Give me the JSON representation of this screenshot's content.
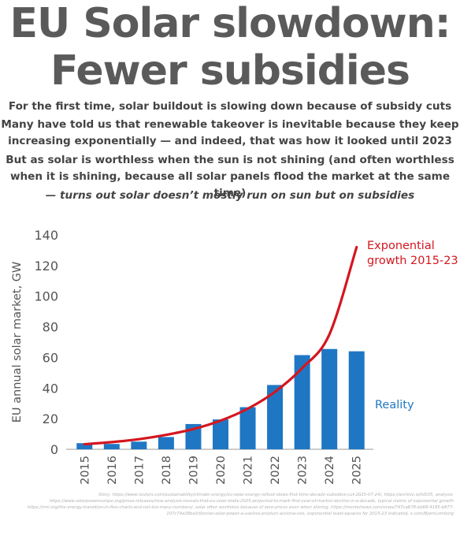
{
  "title_line1": "EU Solar slowdown:",
  "title_line2": "Fewer subsidies",
  "subtitle1": "For the first time, solar buildout is slowing down because of subsidy cuts",
  "subtitle2": "Many have told us that renewable takeover is inevitable because they keep increasing exponentially — and indeed, that was how it looked until 2023",
  "subtitle3": "But as solar is worthless when the sun is not shining (and often worthless when it is shining, because all solar panels flood the market at the same time)",
  "subtitle4": "— turns out solar doesn’t mostly run on sun but on subsidies",
  "sources": "Story: https://www.reuters.com/sustainability/climate-energy/eu-solar-energy-rollout-slows-first-time-decade-subsidies-cut-2025-07-24/, https://archive.is/hlD35, analysis: https://www.solarpowereurope.org/press-releases/new-analysis-reveals-that-eu-solar-stalls-2025-projected-to-mark-first-year-of-market-decline-in-a-decade, typical claims of exponential growth https://rmi.org/the-energy-transition-in-five-charts-and-not-too-many-numbers/, solar often worthless because of zero-prices even when shining, https://montelnews.com/news/747ca678-bb68-4185-b877-107c74a38ba3/iberian-solar-power-a-useless-product-acciona-ceo, exponential least-squares for 2015-23 indicated, x.com/BjornLomborg",
  "chart_data": {
    "type": "bar",
    "categories": [
      "2015",
      "2016",
      "2017",
      "2018",
      "2019",
      "2020",
      "2021",
      "2022",
      "2023",
      "2024",
      "2025"
    ],
    "values": [
      4,
      3.5,
      5,
      8,
      16.5,
      19.5,
      27.5,
      42,
      61.5,
      65.5,
      64
    ],
    "ylabel": "EU annual solar market, GW",
    "ylim": [
      0,
      140
    ],
    "yticks": [
      0,
      20,
      40,
      60,
      80,
      100,
      120,
      140
    ],
    "grid": false,
    "bar_color": "#1f77c4",
    "reality_label": "Reality",
    "reality_color": "#1f77c4",
    "trend": {
      "label_line1": "Exponential",
      "label_line2": "growth 2015-23",
      "color": "#d4161f",
      "x": [
        2015,
        2016,
        2017,
        2018,
        2019,
        2020,
        2021,
        2022,
        2023,
        2024,
        2025
      ],
      "y": [
        3.3,
        4.7,
        6.6,
        9.4,
        13.2,
        18.7,
        26.5,
        37.5,
        53,
        75,
        132
      ]
    }
  }
}
